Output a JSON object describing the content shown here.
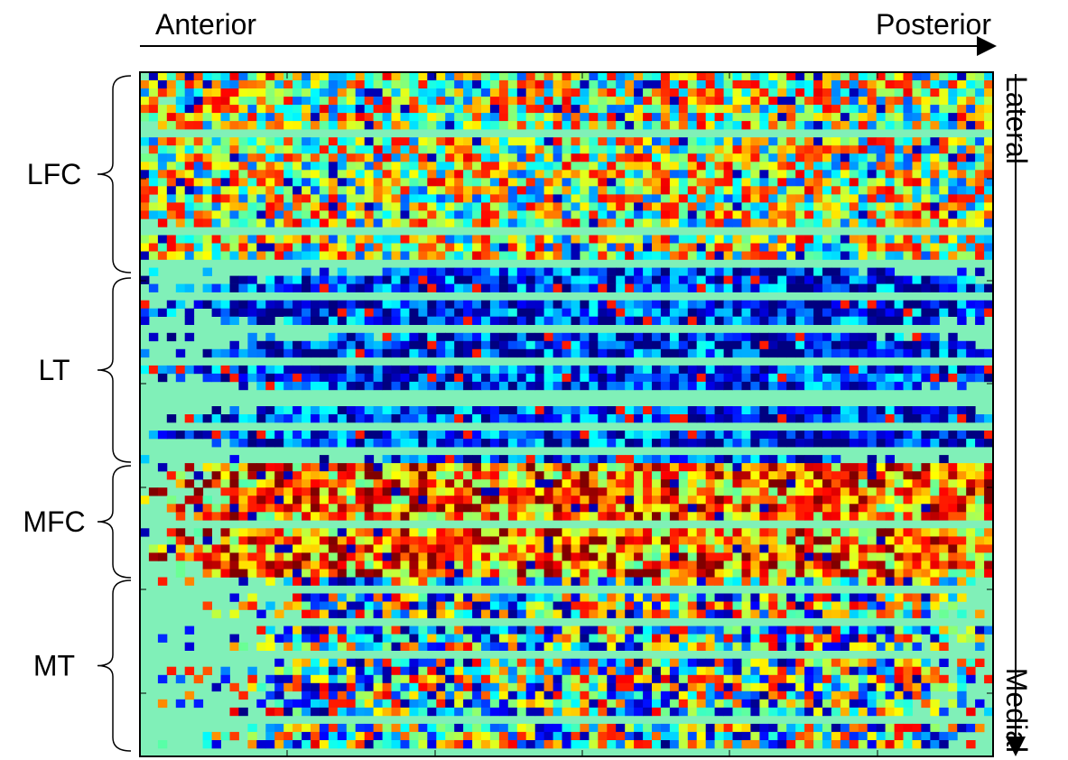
{
  "header": {
    "x_start": "Anterior",
    "x_end": "Posterior",
    "y_start": "Lateral",
    "y_end": "Medial"
  },
  "regions": [
    {
      "label": "LFC"
    },
    {
      "label": "LT"
    },
    {
      "label": "MFC"
    },
    {
      "label": "MT"
    }
  ]
}
